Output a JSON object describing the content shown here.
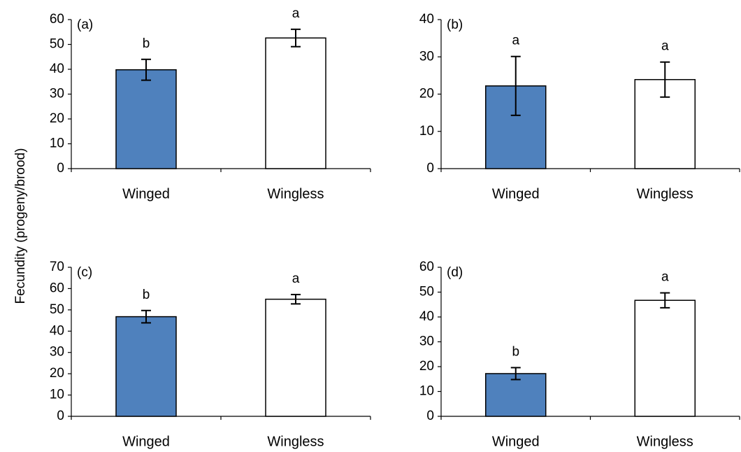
{
  "ylabel": "Fecundity (progeny/brood)",
  "colors": {
    "winged_fill": "#4f81bd",
    "wingless_fill": "#ffffff",
    "outline": "#000000"
  },
  "chart_data": [
    {
      "type": "bar",
      "panel_label": "(a)",
      "categories": [
        "Winged",
        "Wingless"
      ],
      "values": [
        39.8,
        52.6
      ],
      "errors": [
        4.2,
        3.5
      ],
      "significance": [
        "b",
        "a"
      ],
      "ylim": [
        0,
        60
      ],
      "yticks": [
        0,
        10,
        20,
        30,
        40,
        50,
        60
      ]
    },
    {
      "type": "bar",
      "panel_label": "(b)",
      "categories": [
        "Winged",
        "Wingless"
      ],
      "values": [
        22.2,
        23.9
      ],
      "errors": [
        7.9,
        4.7
      ],
      "significance": [
        "a",
        "a"
      ],
      "ylim": [
        0,
        40
      ],
      "yticks": [
        0,
        10,
        20,
        30,
        40
      ]
    },
    {
      "type": "bar",
      "panel_label": "(c)",
      "categories": [
        "Winged",
        "Wingless"
      ],
      "values": [
        46.8,
        55.0
      ],
      "errors": [
        2.9,
        2.2
      ],
      "significance": [
        "b",
        "a"
      ],
      "ylim": [
        0,
        70
      ],
      "yticks": [
        0,
        10,
        20,
        30,
        40,
        50,
        60,
        70
      ]
    },
    {
      "type": "bar",
      "panel_label": "(d)",
      "categories": [
        "Winged",
        "Wingless"
      ],
      "values": [
        17.2,
        46.7
      ],
      "errors": [
        2.4,
        3.0
      ],
      "significance": [
        "b",
        "a"
      ],
      "ylim": [
        0,
        60
      ],
      "yticks": [
        0,
        10,
        20,
        30,
        40,
        50,
        60
      ]
    }
  ]
}
